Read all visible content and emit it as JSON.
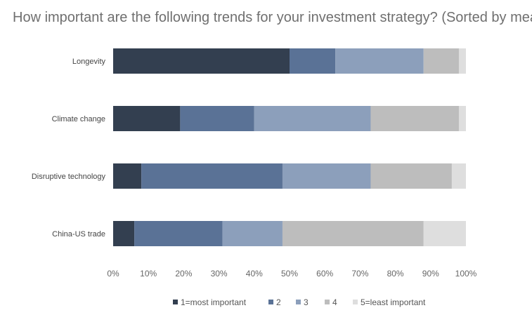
{
  "chart_data": {
    "type": "bar",
    "orientation": "horizontal",
    "stacked": true,
    "title": "How important are the following trends for your investment strategy? (Sorted by mean)",
    "categories": [
      "Longevity",
      "Climate change",
      "Disruptive technology",
      "China-US trade"
    ],
    "series": [
      {
        "name": "1=most important",
        "color": "#333f50",
        "values": [
          50,
          19,
          8,
          6
        ]
      },
      {
        "name": "2",
        "color": "#5a7296",
        "values": [
          13,
          21,
          40,
          25
        ]
      },
      {
        "name": "3",
        "color": "#8c9fbb",
        "values": [
          25,
          33,
          25,
          17
        ]
      },
      {
        "name": "4",
        "color": "#bdbdbd",
        "values": [
          10,
          25,
          23,
          40
        ]
      },
      {
        "name": "5=least important",
        "color": "#dedede",
        "values": [
          2,
          2,
          4,
          12
        ]
      }
    ],
    "x_ticks": [
      "0%",
      "10%",
      "20%",
      "30%",
      "40%",
      "50%",
      "60%",
      "70%",
      "80%",
      "90%",
      "100%"
    ],
    "xlim": [
      0,
      100
    ],
    "xlabel": "",
    "ylabel": "",
    "grid": false,
    "legend_position": "bottom"
  }
}
